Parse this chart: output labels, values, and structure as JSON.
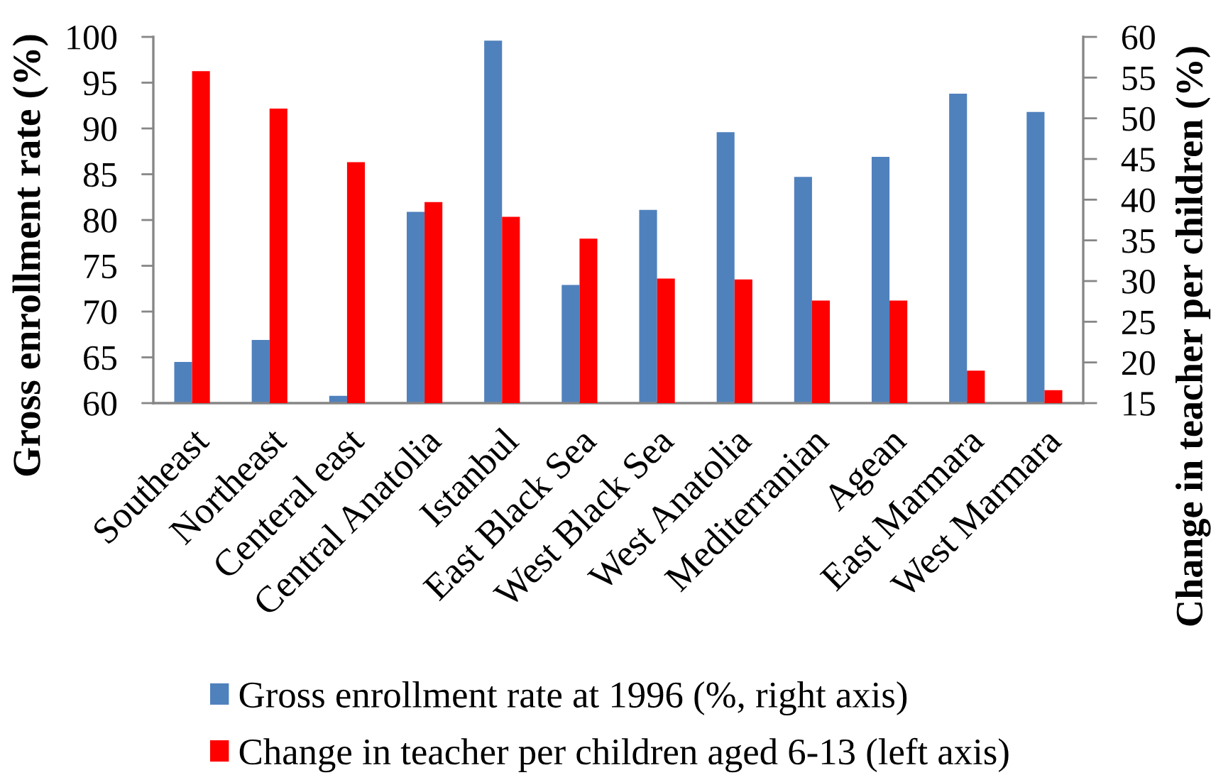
{
  "chart_data": {
    "type": "bar",
    "categories": [
      "Southeast",
      "Northeast",
      "Centeral east",
      "Central Anatolia",
      "Istanbul",
      "East Black Sea",
      "West Black Sea",
      "West Anatolia",
      "Mediterranian",
      "Agean",
      "East Marmara",
      "West Marmara"
    ],
    "series": [
      {
        "name": "Gross enrollment rate at 1996 (%, right axis)",
        "color": "#4f81bd",
        "axis": "y",
        "values": [
          64.5,
          66.9,
          60.8,
          80.9,
          99.6,
          72.9,
          81.1,
          89.6,
          84.7,
          86.9,
          93.8,
          91.8
        ]
      },
      {
        "name": "Change in teacher per children aged 6-13 (left axis)",
        "color": "#ff0000",
        "axis": "y2",
        "values": [
          55.8,
          51.2,
          44.6,
          39.7,
          37.9,
          35.2,
          30.3,
          30.2,
          27.6,
          27.6,
          19.0,
          16.6
        ]
      }
    ],
    "ylabel": "Gross enrollment rate (%)",
    "y2label": "Change in teacher per children (%)",
    "ylim": [
      60,
      100
    ],
    "yticks": [
      60,
      65,
      70,
      75,
      80,
      85,
      90,
      95,
      100
    ],
    "y2lim": [
      15,
      60
    ],
    "y2ticks": [
      15,
      20,
      25,
      30,
      35,
      40,
      45,
      50,
      55,
      60
    ],
    "legend": "bottom"
  }
}
